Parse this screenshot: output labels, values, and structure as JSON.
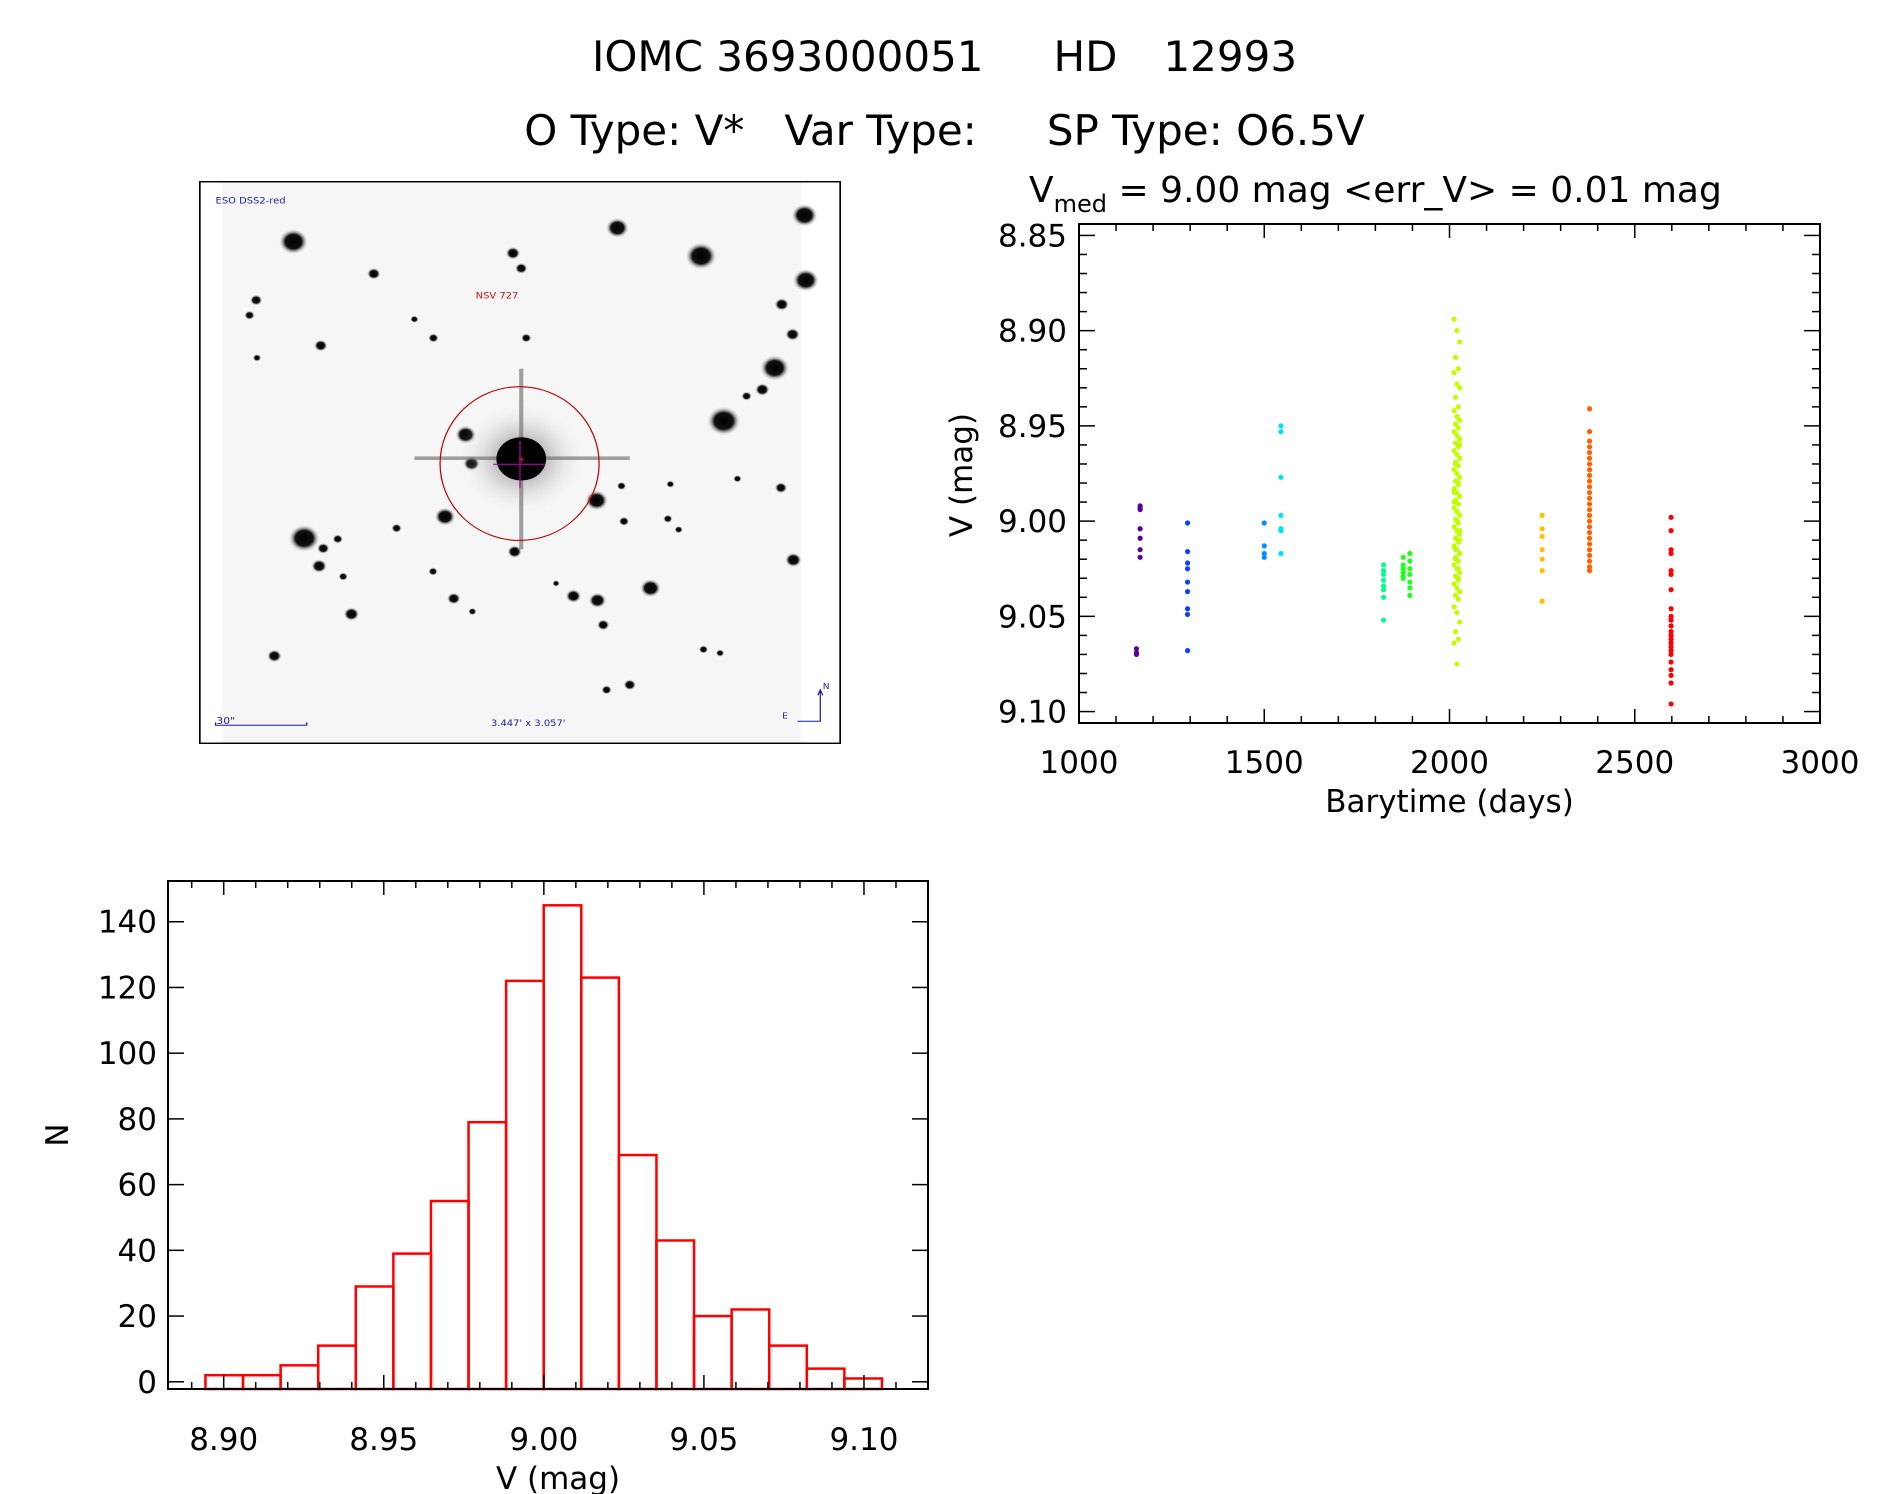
{
  "header": {
    "title_id": "IOMC 3693000051",
    "title_hd_label": "HD",
    "title_hd_number": "12993",
    "otype": "O Type: V*",
    "vartype": "Var Type:",
    "sptype": "SP Type: O6.5V",
    "vmed_symbol": "V",
    "vmed_sub": "med",
    "vmed_text": " = 9.00 mag <err_V> = 0.01 mag"
  },
  "finder_chart": {
    "survey_label": "ESO DSS2-red",
    "target_label": "NSV 727",
    "scale_label": "30\"",
    "fov_label": "3.447' x 3.057'",
    "north_label": "N",
    "east_label": "E"
  },
  "colors": {
    "histogram": "#ff0000",
    "circle": "#c00000"
  },
  "chart_data": [
    {
      "type": "scatter",
      "title": "",
      "xlabel": "Barytime (days)",
      "ylabel": "V (mag)",
      "xlim": [
        1000,
        3000
      ],
      "ylim": [
        9.106,
        8.844
      ],
      "xticks": [
        "1000",
        "1500",
        "2000",
        "2500",
        "3000"
      ],
      "yticks": [
        "8.85",
        "8.90",
        "8.95",
        "9.00",
        "9.05",
        "9.10"
      ],
      "series": [
        {
          "x": 1165,
          "color": "#5a0096",
          "y": [
            8.992,
            8.993,
            8.994,
            9.004,
            9.009,
            9.015,
            9.019
          ]
        },
        {
          "x": 1155,
          "color": "#5a0096",
          "y": [
            9.067,
            9.069,
            9.07
          ]
        },
        {
          "x": 1293,
          "color": "#1040ff",
          "y": [
            9.001,
            9.016,
            9.022,
            9.025,
            9.032,
            9.037,
            9.046,
            9.049,
            9.068
          ]
        },
        {
          "x": 1500,
          "color": "#0090ff",
          "y": [
            9.001,
            9.013,
            9.017,
            9.019
          ]
        },
        {
          "x": 1545,
          "color": "#00e0ff",
          "y": [
            8.95,
            8.953,
            8.977,
            8.997,
            9.004,
            9.005,
            9.017
          ]
        },
        {
          "x": 1822,
          "color": "#00ff90",
          "y": [
            9.023,
            9.026,
            9.028,
            9.031,
            9.034,
            9.036,
            9.04,
            9.052
          ]
        },
        {
          "x": 1875,
          "color": "#20ff20",
          "y": [
            9.019,
            9.023,
            9.025,
            9.027,
            9.029,
            9.03
          ]
        },
        {
          "x": 1893,
          "color": "#20ff20",
          "y": [
            9.017,
            9.021,
            9.025,
            9.028,
            9.032,
            9.035,
            9.039
          ]
        },
        {
          "x": 2020,
          "color": "#c0ff00",
          "spread": 15,
          "y": [
            8.894,
            8.9,
            8.906,
            8.914,
            8.92,
            8.922,
            8.928,
            8.93,
            8.935,
            8.94,
            8.942,
            8.945,
            8.947,
            8.949,
            8.951,
            8.953,
            8.955,
            8.957,
            8.959,
            8.961,
            8.963,
            8.965,
            8.967,
            8.969,
            8.971,
            8.973,
            8.975,
            8.977,
            8.979,
            8.981,
            8.983,
            8.985,
            8.987,
            8.989,
            8.991,
            8.993,
            8.995,
            8.997,
            8.999,
            9.001,
            9.003,
            9.005,
            9.007,
            9.009,
            9.011,
            9.013,
            9.015,
            9.017,
            9.019,
            9.021,
            9.023,
            9.025,
            9.027,
            9.029,
            9.031,
            9.033,
            9.035,
            9.037,
            9.039,
            9.041,
            9.045,
            9.048,
            9.053,
            9.058,
            9.062,
            9.064,
            9.075,
            8.96,
            8.97,
            8.98,
            8.99,
            9.0,
            9.01,
            9.02,
            9.03,
            8.985,
            8.995,
            9.005,
            9.015,
            9.025
          ]
        },
        {
          "x": 2250,
          "color": "#ffc000",
          "y": [
            8.997,
            9.004,
            9.008,
            9.015,
            9.02,
            9.026,
            9.042
          ]
        },
        {
          "x": 2378,
          "color": "#ff6000",
          "y": [
            8.941,
            8.953,
            8.958,
            8.961,
            8.964,
            8.967,
            8.97,
            8.973,
            8.976,
            8.979,
            8.982,
            8.985,
            8.988,
            8.991,
            8.994,
            8.997,
            9.0,
            9.003,
            9.006,
            9.009,
            9.012,
            9.015,
            9.018,
            9.021,
            9.024,
            9.026
          ]
        },
        {
          "x": 2598,
          "color": "#ff0000",
          "y": [
            8.998,
            9.005,
            9.015,
            9.017,
            9.026,
            9.028,
            9.036,
            9.046,
            9.05,
            9.052,
            9.055,
            9.058,
            9.06,
            9.062,
            9.064,
            9.066,
            9.068,
            9.07,
            9.074,
            9.078,
            9.081,
            9.085,
            9.096
          ]
        }
      ]
    },
    {
      "type": "bar",
      "title": "",
      "xlabel": "V (mag)",
      "ylabel": "N",
      "xlim": [
        8.8826,
        9.12
      ],
      "ylim": [
        -2.2,
        152.4
      ],
      "xticks": [
        "8.90",
        "8.95",
        "9.00",
        "9.05",
        "9.10"
      ],
      "yticks": [
        "0",
        "20",
        "40",
        "60",
        "80",
        "100",
        "120",
        "140"
      ],
      "bin_start": 8.8943,
      "bin_width": 0.01174,
      "values": [
        2,
        2,
        5,
        11,
        29,
        39,
        55,
        79,
        122,
        145,
        123,
        69,
        43,
        20,
        22,
        11,
        4,
        1
      ]
    }
  ]
}
